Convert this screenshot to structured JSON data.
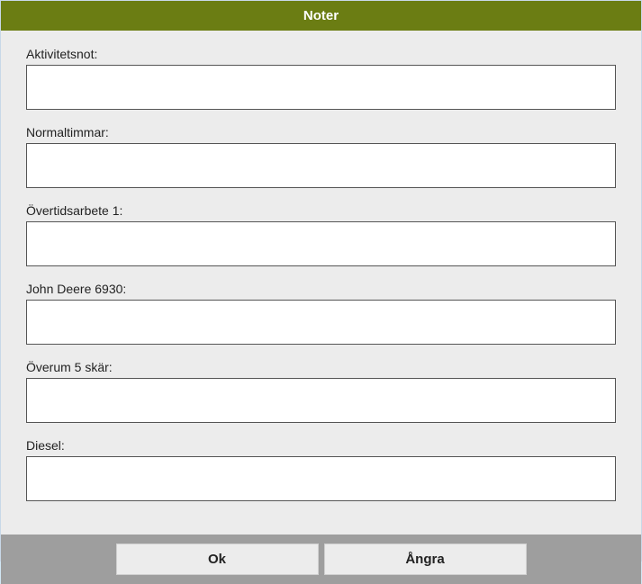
{
  "header": {
    "title": "Noter"
  },
  "fields": [
    {
      "label": "Aktivitetsnot:",
      "value": ""
    },
    {
      "label": "Normaltimmar:",
      "value": ""
    },
    {
      "label": "Övertidsarbete 1:",
      "value": ""
    },
    {
      "label": "John Deere 6930:",
      "value": ""
    },
    {
      "label": "Överum 5 skär:",
      "value": ""
    },
    {
      "label": "Diesel:",
      "value": ""
    }
  ],
  "buttons": {
    "ok": "Ok",
    "cancel": "Ångra"
  },
  "colors": {
    "header_bg": "#6b7d13",
    "header_text": "#ffffff",
    "panel_bg": "#ececec",
    "footer_bg": "#9e9e9e",
    "button_bg": "#ececec",
    "textarea_border": "#555555"
  }
}
